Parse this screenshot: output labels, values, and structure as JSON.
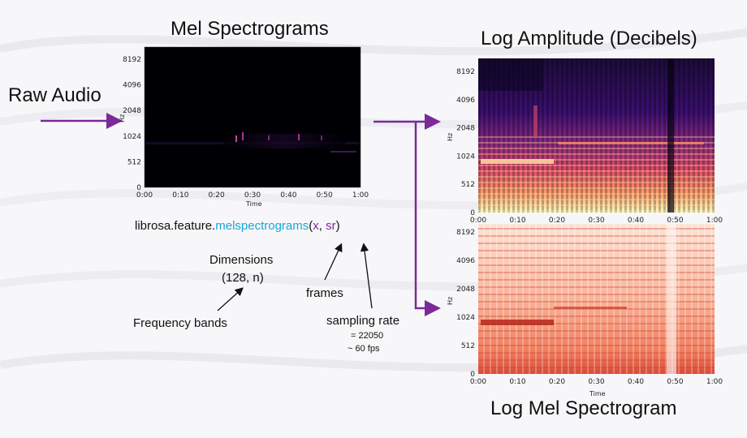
{
  "titles": {
    "mel": "Mel Spectrograms",
    "log_amp": "Log Amplitude (Decibels)",
    "log_mel": "Log Mel Spectrogram",
    "raw_audio": "Raw Audio"
  },
  "code": {
    "prefix": "librosa.feature.",
    "func": "melspectrograms",
    "open": "(",
    "arg1": "x",
    "sep": ", ",
    "arg2": "sr",
    "close": ")"
  },
  "annotations": {
    "dimensions": "Dimensions",
    "dimensions_value": "(128, n)",
    "frames": "frames",
    "frequency_bands": "Frequency bands",
    "sampling_rate": "sampling rate",
    "sampling_rate_value": "= 22050",
    "fps": "~ 60 fps"
  },
  "axes": {
    "y_ticks": [
      "8192",
      "4096",
      "2048",
      "1024",
      "512",
      "0"
    ],
    "x_ticks": [
      "0:00",
      "0:10",
      "0:20",
      "0:30",
      "0:40",
      "0:50",
      "1:00"
    ],
    "ylabel": "Hz",
    "xlabel": "Time"
  },
  "colors": {
    "arrow": "#7a2a9a",
    "code_func": "#1aa6d6",
    "code_args": "#7a2a9a"
  }
}
